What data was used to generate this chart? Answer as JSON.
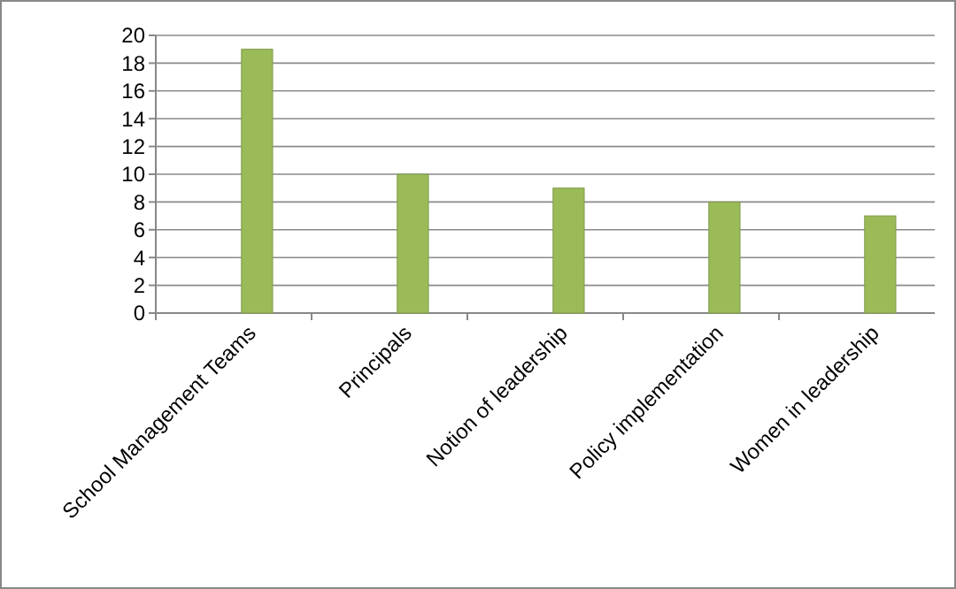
{
  "chart_data": {
    "type": "bar",
    "categories": [
      "School Management Teams",
      "Principals",
      "Notion of leadership",
      "Policy implementation",
      "Women in leadership"
    ],
    "values": [
      19,
      10,
      9,
      8,
      7
    ],
    "color": "#9bbb59",
    "ylim": [
      0,
      20
    ],
    "yticks": [
      0,
      2,
      4,
      6,
      8,
      10,
      12,
      14,
      16,
      18,
      20
    ],
    "grid": "y"
  }
}
